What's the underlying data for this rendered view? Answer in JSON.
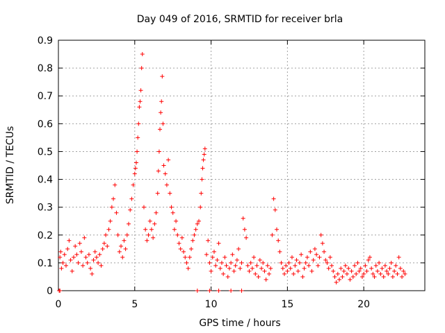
{
  "chart_data": {
    "type": "scatter",
    "title": "Day 049 of 2016, SRMTID for receiver brla",
    "xlabel": "GPS time / hours",
    "ylabel": "SRMTID / TECUs",
    "xlim": [
      0,
      24
    ],
    "ylim": [
      0,
      0.9
    ],
    "xticks": [
      0,
      5,
      10,
      15,
      20
    ],
    "xtick_labels": [
      "0",
      "5",
      "10",
      "15",
      "20"
    ],
    "yticks": [
      0,
      0.1,
      0.2,
      0.3,
      0.4,
      0.5,
      0.6,
      0.7,
      0.8,
      0.9
    ],
    "ytick_labels": [
      "0",
      "0.1",
      "0.2",
      "0.3",
      "0.4",
      "0.5",
      "0.6",
      "0.7",
      "0.8",
      "0.9"
    ],
    "grid": true,
    "marker": "plus",
    "color": "#ff0000",
    "series": [
      {
        "name": "SRMTID",
        "x": [
          0.05,
          0.1,
          0.15,
          0.2,
          0.3,
          0.4,
          0.5,
          0.6,
          0.7,
          0.8,
          0.9,
          1.0,
          1.1,
          1.2,
          1.3,
          1.4,
          1.5,
          1.6,
          1.7,
          1.8,
          1.9,
          2.0,
          2.1,
          2.2,
          2.3,
          2.4,
          2.5,
          2.6,
          2.7,
          2.8,
          2.9,
          3.0,
          3.1,
          3.2,
          3.3,
          3.4,
          3.5,
          3.6,
          3.7,
          3.8,
          3.9,
          4.0,
          4.1,
          4.2,
          4.3,
          4.4,
          4.5,
          4.6,
          4.7,
          4.8,
          4.9,
          5.0,
          5.05,
          5.1,
          5.15,
          5.2,
          5.25,
          5.3,
          5.35,
          5.4,
          5.45,
          5.5,
          5.6,
          5.7,
          5.8,
          5.9,
          6.0,
          6.1,
          6.2,
          6.3,
          6.4,
          6.5,
          6.55,
          6.6,
          6.65,
          6.7,
          6.75,
          6.8,
          6.85,
          6.9,
          7.0,
          7.1,
          7.2,
          7.3,
          7.4,
          7.5,
          7.6,
          7.7,
          7.8,
          7.9,
          8.0,
          8.1,
          8.2,
          8.3,
          8.4,
          8.5,
          8.6,
          8.7,
          8.8,
          8.9,
          9.0,
          9.1,
          9.2,
          9.3,
          9.35,
          9.4,
          9.45,
          9.5,
          9.55,
          9.6,
          9.7,
          9.8,
          9.9,
          10.0,
          10.1,
          10.2,
          10.3,
          10.4,
          10.5,
          10.6,
          10.7,
          10.8,
          10.9,
          11.0,
          11.1,
          11.2,
          11.3,
          11.4,
          11.5,
          11.6,
          11.7,
          11.8,
          11.9,
          12.0,
          12.1,
          12.2,
          12.3,
          12.4,
          12.5,
          12.6,
          12.7,
          12.8,
          12.9,
          13.0,
          13.1,
          13.2,
          13.3,
          13.4,
          13.5,
          13.6,
          13.7,
          13.8,
          13.9,
          14.0,
          14.1,
          14.2,
          14.3,
          14.4,
          14.5,
          14.6,
          14.7,
          14.8,
          14.9,
          15.0,
          15.1,
          15.2,
          15.3,
          15.4,
          15.5,
          15.6,
          15.7,
          15.8,
          15.9,
          16.0,
          16.1,
          16.2,
          16.3,
          16.4,
          16.5,
          16.6,
          16.7,
          16.8,
          16.9,
          17.0,
          17.1,
          17.2,
          17.3,
          17.4,
          17.5,
          17.6,
          17.7,
          17.8,
          17.9,
          18.0,
          18.1,
          18.2,
          18.3,
          18.4,
          18.5,
          18.6,
          18.7,
          18.8,
          18.9,
          19.0,
          19.1,
          19.2,
          19.3,
          19.4,
          19.5,
          19.6,
          19.7,
          19.8,
          19.9,
          20.0,
          20.1,
          20.2,
          20.3,
          20.4,
          20.5,
          20.6,
          20.7,
          20.8,
          20.9,
          21.0,
          21.1,
          21.2,
          21.3,
          21.4,
          21.5,
          21.6,
          21.7,
          21.8,
          21.9,
          22.0,
          22.1,
          22.2,
          22.3,
          22.4,
          22.5,
          22.6,
          22.7,
          0.1,
          9.1,
          9.9,
          10.5,
          11.3,
          12.0
        ],
        "y": [
          0.0,
          0.12,
          0.14,
          0.08,
          0.1,
          0.13,
          0.09,
          0.15,
          0.18,
          0.11,
          0.07,
          0.12,
          0.16,
          0.13,
          0.1,
          0.17,
          0.14,
          0.09,
          0.19,
          0.12,
          0.1,
          0.13,
          0.08,
          0.06,
          0.11,
          0.14,
          0.12,
          0.1,
          0.13,
          0.09,
          0.15,
          0.17,
          0.2,
          0.16,
          0.22,
          0.25,
          0.3,
          0.33,
          0.38,
          0.28,
          0.2,
          0.14,
          0.16,
          0.12,
          0.18,
          0.15,
          0.2,
          0.24,
          0.29,
          0.33,
          0.38,
          0.42,
          0.44,
          0.46,
          0.5,
          0.55,
          0.6,
          0.66,
          0.68,
          0.72,
          0.8,
          0.85,
          0.3,
          0.22,
          0.18,
          0.2,
          0.25,
          0.22,
          0.19,
          0.24,
          0.28,
          0.35,
          0.43,
          0.5,
          0.58,
          0.64,
          0.68,
          0.77,
          0.6,
          0.45,
          0.42,
          0.38,
          0.47,
          0.35,
          0.3,
          0.28,
          0.22,
          0.25,
          0.2,
          0.17,
          0.15,
          0.19,
          0.14,
          0.12,
          0.1,
          0.08,
          0.12,
          0.15,
          0.18,
          0.2,
          0.22,
          0.24,
          0.25,
          0.3,
          0.35,
          0.4,
          0.44,
          0.47,
          0.49,
          0.51,
          0.13,
          0.18,
          0.1,
          0.07,
          0.12,
          0.14,
          0.09,
          0.11,
          0.17,
          0.08,
          0.1,
          0.06,
          0.12,
          0.09,
          0.05,
          0.08,
          0.1,
          0.13,
          0.07,
          0.09,
          0.11,
          0.15,
          0.08,
          0.1,
          0.26,
          0.22,
          0.19,
          0.09,
          0.07,
          0.1,
          0.08,
          0.12,
          0.06,
          0.09,
          0.05,
          0.11,
          0.08,
          0.1,
          0.07,
          0.04,
          0.09,
          0.06,
          0.08,
          0.2,
          0.33,
          0.29,
          0.22,
          0.18,
          0.14,
          0.1,
          0.08,
          0.06,
          0.09,
          0.07,
          0.1,
          0.08,
          0.12,
          0.06,
          0.09,
          0.11,
          0.07,
          0.1,
          0.13,
          0.05,
          0.08,
          0.1,
          0.12,
          0.09,
          0.14,
          0.07,
          0.11,
          0.15,
          0.13,
          0.09,
          0.12,
          0.2,
          0.17,
          0.14,
          0.11,
          0.1,
          0.08,
          0.12,
          0.09,
          0.07,
          0.05,
          0.03,
          0.06,
          0.04,
          0.08,
          0.05,
          0.07,
          0.09,
          0.06,
          0.08,
          0.04,
          0.07,
          0.05,
          0.09,
          0.06,
          0.1,
          0.07,
          0.08,
          0.05,
          0.06,
          0.09,
          0.07,
          0.11,
          0.12,
          0.08,
          0.06,
          0.05,
          0.09,
          0.07,
          0.1,
          0.06,
          0.08,
          0.05,
          0.09,
          0.07,
          0.06,
          0.08,
          0.1,
          0.05,
          0.07,
          0.09,
          0.06,
          0.12,
          0.08,
          0.05,
          0.07,
          0.06,
          0.0,
          0.0,
          0.0,
          0.0,
          0.0,
          0.0
        ]
      }
    ]
  }
}
